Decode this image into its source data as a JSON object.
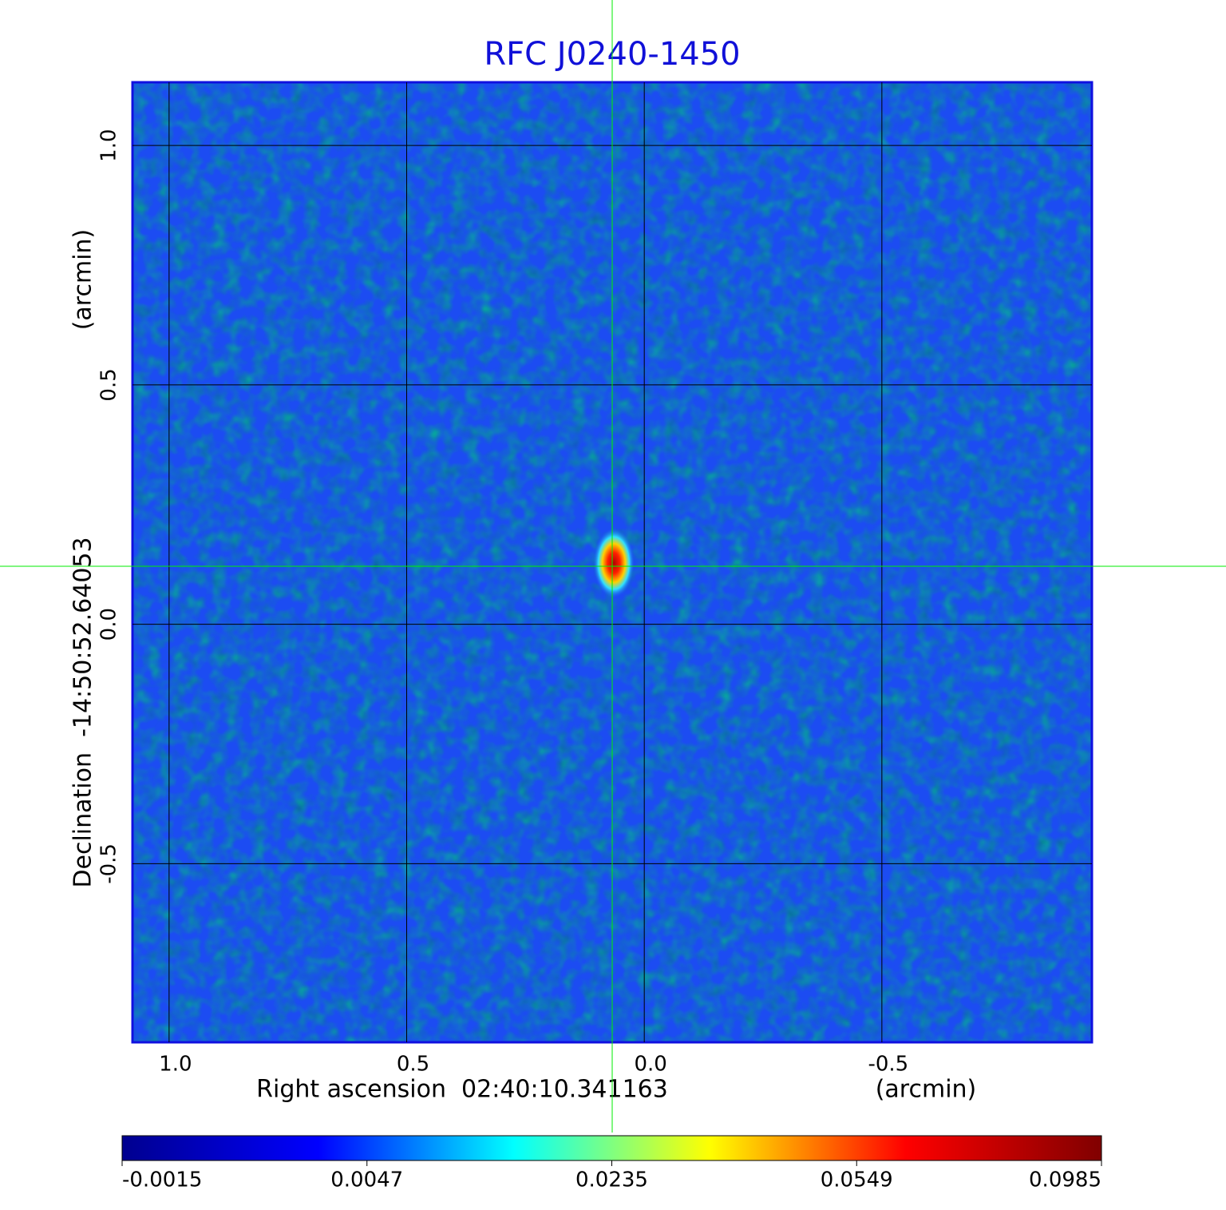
{
  "chart_data": {
    "type": "image",
    "title": "RFC J0240-1450",
    "xlabel": "Right ascension  02:40:10.341163",
    "xunit": "(arcmin)",
    "ylabel": "Declination  -14:50:52.64053",
    "yunit": "(arcmin)",
    "xlim": [
      1.077,
      -0.942
    ],
    "ylim": [
      -0.873,
      1.132
    ],
    "xticks": [
      {
        "value": 1,
        "label": "1.0"
      },
      0.5,
      {
        "value": 0,
        "label": "0.0"
      },
      -0.5
    ],
    "yticks": [
      {
        "value": 1,
        "label": "1.0"
      },
      0.5,
      {
        "value": 0,
        "label": "0.0"
      },
      -0.5
    ],
    "grid": true,
    "colorbar": {
      "ticks": [
        -0.0015,
        0.0047,
        0.0235,
        0.0549,
        0.0985
      ],
      "colors": [
        "#00008f",
        "#0000ff",
        "#00ffff",
        "#ffff00",
        "#ff0000",
        "#800000"
      ]
    }
  }
}
